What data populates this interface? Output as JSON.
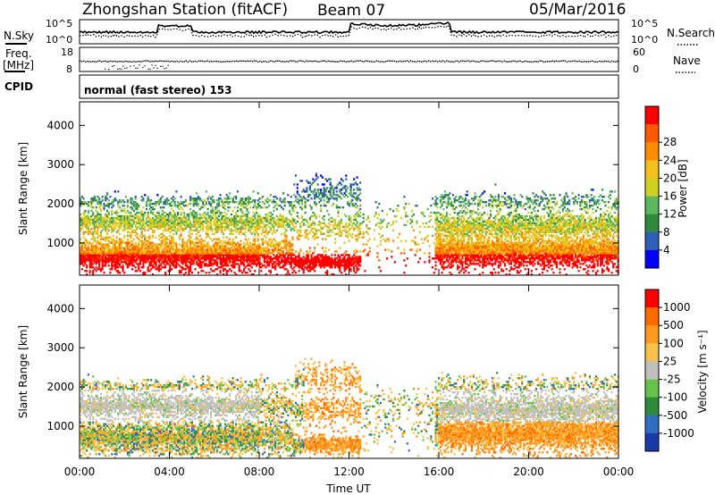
{
  "header": {
    "title": "Zhongshan Station (fitACF)",
    "beam": "Beam 07",
    "date": "05/Mar/2016"
  },
  "noise_panel": {
    "left_label": "N.Sky",
    "right_label": "N.Search",
    "left_ticks": [
      "10^5",
      "10^0"
    ],
    "right_ticks": [
      "10^5",
      "10^0"
    ]
  },
  "freq_panel": {
    "left_label_line1": "Freq.",
    "left_label_line2": "[MHz]",
    "right_label": "Nave",
    "left_ticks": [
      "18",
      "8"
    ],
    "right_ticks": [
      "60",
      "0"
    ]
  },
  "cpid_panel": {
    "label": "CPID",
    "text": "normal (fast stereo) 153"
  },
  "chart_data": [
    {
      "type": "heatmap",
      "title": "Power",
      "ylabel": "Slant Range [km]",
      "xlabel": "Time UT",
      "x_ticks": [
        "00:00",
        "04:00",
        "08:00",
        "12:00",
        "16:00",
        "20:00",
        "00:00"
      ],
      "y_ticks": [
        "1000",
        "2000",
        "3000",
        "4000"
      ],
      "xlim_hours": [
        0,
        24
      ],
      "ylim_km": [
        180,
        4600
      ],
      "colorbar_label": "Power [dB]",
      "colorbar_ticks": [
        "4",
        "8",
        "12",
        "16",
        "20",
        "24",
        "28"
      ],
      "colorbar_colors": [
        "#0000ff",
        "#2c5fb5",
        "#2e8b3e",
        "#5cb85c",
        "#d0d020",
        "#f4c01c",
        "#ff8c00",
        "#ff5a00",
        "#ff0000"
      ]
    },
    {
      "type": "heatmap",
      "title": "Velocity",
      "ylabel": "Slant Range [km]",
      "xlabel": "Time UT",
      "x_ticks": [
        "00:00",
        "04:00",
        "08:00",
        "12:00",
        "16:00",
        "20:00",
        "00:00"
      ],
      "y_ticks": [
        "1000",
        "2000",
        "3000",
        "4000"
      ],
      "xlim_hours": [
        0,
        24
      ],
      "ylim_km": [
        180,
        4600
      ],
      "colorbar_label": "Velocity [m s⁻¹]",
      "colorbar_ticks": [
        "1000",
        "500",
        "100",
        "25",
        "-25",
        "-100",
        "-500",
        "-1000"
      ],
      "colorbar_colors": [
        "#1a3aa8",
        "#2f6ec0",
        "#2e8b3e",
        "#66c34a",
        "#c0c0bc",
        "#f6c24a",
        "#ff9a1e",
        "#ff6a00",
        "#ff0000"
      ]
    }
  ],
  "power_colors": [
    "#0000ff",
    "#2c5fb5",
    "#2e8b3e",
    "#5cb85c",
    "#d0d020",
    "#f4c01c",
    "#ff8c00",
    "#ff5a00",
    "#ff0000"
  ],
  "velocity_colors": [
    "#1a3aa8",
    "#2f6ec0",
    "#2e8b3e",
    "#66c34a",
    "#c0c0bc",
    "#f6c24a",
    "#ff9a1e",
    "#ff6a00",
    "#ff0000"
  ]
}
